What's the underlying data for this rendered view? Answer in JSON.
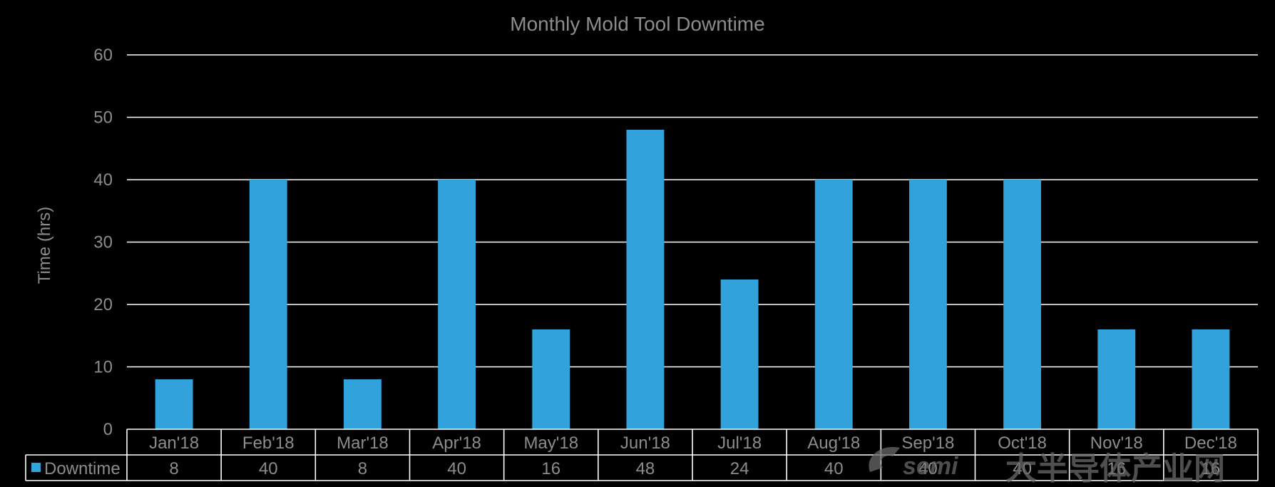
{
  "chart_data": {
    "type": "bar",
    "title": "Monthly Mold Tool Downtime",
    "xlabel": "",
    "ylabel": "Time (hrs)",
    "ylim": [
      0,
      60
    ],
    "yticks": [
      0,
      10,
      20,
      30,
      40,
      50,
      60
    ],
    "grid": true,
    "legend": "data-table-left",
    "categories": [
      "Jan'18",
      "Feb'18",
      "Mar'18",
      "Apr'18",
      "May'18",
      "Jun'18",
      "Jul'18",
      "Aug'18",
      "Sep'18",
      "Oct'18",
      "Nov'18",
      "Dec'18"
    ],
    "series": [
      {
        "name": "Downtime",
        "values": [
          8,
          40,
          8,
          40,
          16,
          48,
          24,
          40,
          40,
          40,
          16,
          16
        ],
        "color": "#31a2dc"
      }
    ]
  },
  "watermark": {
    "latin": "semi",
    "cjk": "大半导体产业网"
  },
  "colors": {
    "background": "#000000",
    "text": "#8c8c8c",
    "grid": "#ffffff",
    "bar": "#31a2dc"
  }
}
